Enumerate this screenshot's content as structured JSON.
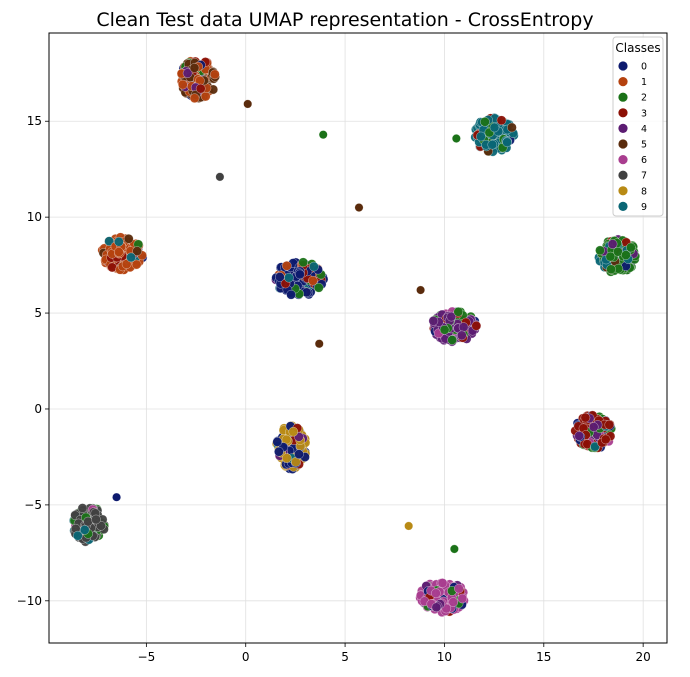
{
  "chart_data": {
    "type": "scatter",
    "title": "Clean Test data UMAP representation - CrossEntropy",
    "xlabel": "",
    "ylabel": "",
    "xlim": [
      -9.9,
      21.2
    ],
    "ylim": [
      -12.2,
      19.6
    ],
    "xticks": [
      -5,
      0,
      5,
      10,
      15,
      20
    ],
    "yticks": [
      -10,
      -5,
      0,
      5,
      10,
      15
    ],
    "grid": true,
    "legend": {
      "title": "Classes",
      "placement": "top-right",
      "labels": [
        "0",
        "1",
        "2",
        "3",
        "4",
        "5",
        "6",
        "7",
        "8",
        "9"
      ]
    },
    "colors": [
      "#0d1a6e",
      "#b5420f",
      "#1b7218",
      "#8c1005",
      "#5c1c72",
      "#5a2b0c",
      "#a93d8f",
      "#414141",
      "#b88a15",
      "#0a6675"
    ],
    "clusters": [
      {
        "name": "cluster-top-left",
        "cx": -2.4,
        "cy": 17.2,
        "rx": 0.95,
        "ry": 1.1,
        "n": 140,
        "mix": [
          [
            5,
            0.45
          ],
          [
            1,
            0.25
          ],
          [
            3,
            0.1
          ],
          [
            4,
            0.08
          ],
          [
            2,
            0.07
          ],
          [
            0,
            0.05
          ]
        ]
      },
      {
        "name": "cluster-left",
        "cx": -6.2,
        "cy": 8.1,
        "rx": 1.1,
        "ry": 0.9,
        "n": 150,
        "mix": [
          [
            1,
            0.7
          ],
          [
            3,
            0.08
          ],
          [
            0,
            0.07
          ],
          [
            5,
            0.05
          ],
          [
            2,
            0.04
          ],
          [
            9,
            0.06
          ]
        ]
      },
      {
        "name": "cluster-center",
        "cx": 2.7,
        "cy": 6.8,
        "rx": 1.3,
        "ry": 0.95,
        "n": 150,
        "mix": [
          [
            0,
            0.6
          ],
          [
            1,
            0.12
          ],
          [
            3,
            0.1
          ],
          [
            2,
            0.08
          ],
          [
            4,
            0.05
          ],
          [
            9,
            0.05
          ]
        ]
      },
      {
        "name": "cluster-top-right",
        "cx": 12.5,
        "cy": 14.3,
        "rx": 1.05,
        "ry": 0.95,
        "n": 140,
        "mix": [
          [
            9,
            0.7
          ],
          [
            2,
            0.1
          ],
          [
            0,
            0.08
          ],
          [
            3,
            0.06
          ],
          [
            5,
            0.06
          ]
        ]
      },
      {
        "name": "cluster-right",
        "cx": 18.7,
        "cy": 8.0,
        "rx": 1.0,
        "ry": 0.95,
        "n": 140,
        "mix": [
          [
            2,
            0.62
          ],
          [
            3,
            0.1
          ],
          [
            9,
            0.12
          ],
          [
            4,
            0.06
          ],
          [
            0,
            0.05
          ],
          [
            5,
            0.05
          ]
        ]
      },
      {
        "name": "cluster-mid-right",
        "cx": 10.5,
        "cy": 4.3,
        "rx": 1.2,
        "ry": 0.85,
        "n": 150,
        "mix": [
          [
            4,
            0.55
          ],
          [
            2,
            0.2
          ],
          [
            0,
            0.1
          ],
          [
            3,
            0.08
          ],
          [
            6,
            0.07
          ]
        ]
      },
      {
        "name": "cluster-lower-right",
        "cx": 17.5,
        "cy": -1.2,
        "rx": 1.0,
        "ry": 0.95,
        "n": 140,
        "mix": [
          [
            3,
            0.5
          ],
          [
            2,
            0.15
          ],
          [
            6,
            0.12
          ],
          [
            4,
            0.1
          ],
          [
            0,
            0.08
          ],
          [
            9,
            0.05
          ]
        ]
      },
      {
        "name": "cluster-lower-center",
        "cx": 2.3,
        "cy": -2.0,
        "rx": 0.8,
        "ry": 1.2,
        "n": 160,
        "mix": [
          [
            8,
            0.55
          ],
          [
            0,
            0.3
          ],
          [
            4,
            0.05
          ],
          [
            3,
            0.05
          ],
          [
            9,
            0.05
          ]
        ]
      },
      {
        "name": "cluster-bottom-left",
        "cx": -7.9,
        "cy": -6.0,
        "rx": 0.85,
        "ry": 1.0,
        "n": 130,
        "mix": [
          [
            7,
            0.75
          ],
          [
            2,
            0.12
          ],
          [
            9,
            0.08
          ],
          [
            6,
            0.05
          ]
        ]
      },
      {
        "name": "cluster-bottom",
        "cx": 9.9,
        "cy": -9.8,
        "rx": 1.25,
        "ry": 0.85,
        "n": 150,
        "mix": [
          [
            6,
            0.7
          ],
          [
            4,
            0.1
          ],
          [
            0,
            0.08
          ],
          [
            2,
            0.06
          ],
          [
            3,
            0.06
          ]
        ]
      }
    ],
    "outliers": [
      {
        "x": 0.1,
        "y": 15.9,
        "class": 5
      },
      {
        "x": 3.9,
        "y": 14.3,
        "class": 2
      },
      {
        "x": -1.3,
        "y": 12.1,
        "class": 7
      },
      {
        "x": 5.7,
        "y": 10.5,
        "class": 5
      },
      {
        "x": 10.6,
        "y": 14.1,
        "class": 2
      },
      {
        "x": 8.8,
        "y": 6.2,
        "class": 5
      },
      {
        "x": 3.7,
        "y": 3.4,
        "class": 5
      },
      {
        "x": -6.5,
        "y": -4.6,
        "class": 0
      },
      {
        "x": 8.2,
        "y": -6.1,
        "class": 8
      },
      {
        "x": 10.5,
        "y": -7.3,
        "class": 2
      }
    ]
  }
}
